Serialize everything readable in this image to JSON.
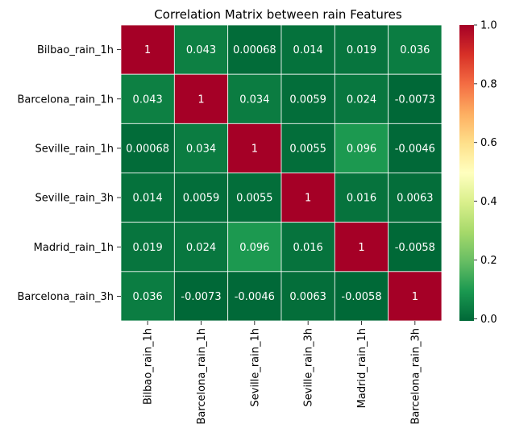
{
  "chart_data": {
    "type": "heatmap",
    "title": "Correlation Matrix between rain Features",
    "xlabel": "",
    "ylabel": "",
    "colormap": "RdYlGn_r",
    "vmin": -0.0073,
    "vmax": 1,
    "colorbar_ticks": [
      0.0,
      0.2,
      0.4,
      0.6,
      0.8,
      1.0
    ],
    "colorbar_tick_labels": [
      "0.0",
      "0.2",
      "0.4",
      "0.6",
      "0.8",
      "1.0"
    ],
    "grid": true,
    "row_labels": [
      "Bilbao_rain_1h",
      "Barcelona_rain_1h",
      "Seville_rain_1h",
      "Seville_rain_3h",
      "Madrid_rain_1h",
      "Barcelona_rain_3h"
    ],
    "col_labels": [
      "Bilbao_rain_1h",
      "Barcelona_rain_1h",
      "Seville_rain_1h",
      "Seville_rain_3h",
      "Madrid_rain_1h",
      "Barcelona_rain_3h"
    ],
    "values": [
      [
        1,
        0.043,
        0.00068,
        0.014,
        0.019,
        0.036
      ],
      [
        0.043,
        1,
        0.034,
        0.0059,
        0.024,
        -0.0073
      ],
      [
        0.00068,
        0.034,
        1,
        0.0055,
        0.096,
        -0.0046
      ],
      [
        0.014,
        0.0059,
        0.0055,
        1,
        0.016,
        0.0063
      ],
      [
        0.019,
        0.024,
        0.096,
        0.016,
        1,
        -0.0058
      ],
      [
        0.036,
        -0.0073,
        -0.0046,
        0.0063,
        -0.0058,
        1
      ]
    ],
    "annotations": [
      [
        "1",
        "0.043",
        "0.00068",
        "0.014",
        "0.019",
        "0.036"
      ],
      [
        "0.043",
        "1",
        "0.034",
        "0.0059",
        "0.024",
        "-0.0073"
      ],
      [
        "0.00068",
        "0.034",
        "1",
        "0.0055",
        "0.096",
        "-0.0046"
      ],
      [
        "0.014",
        "0.0059",
        "0.0055",
        "1",
        "0.016",
        "0.0063"
      ],
      [
        "0.019",
        "0.024",
        "0.096",
        "0.016",
        "1",
        "-0.0058"
      ],
      [
        "0.036",
        "-0.0073",
        "-0.0046",
        "0.0063",
        "-0.0058",
        "1"
      ]
    ]
  }
}
